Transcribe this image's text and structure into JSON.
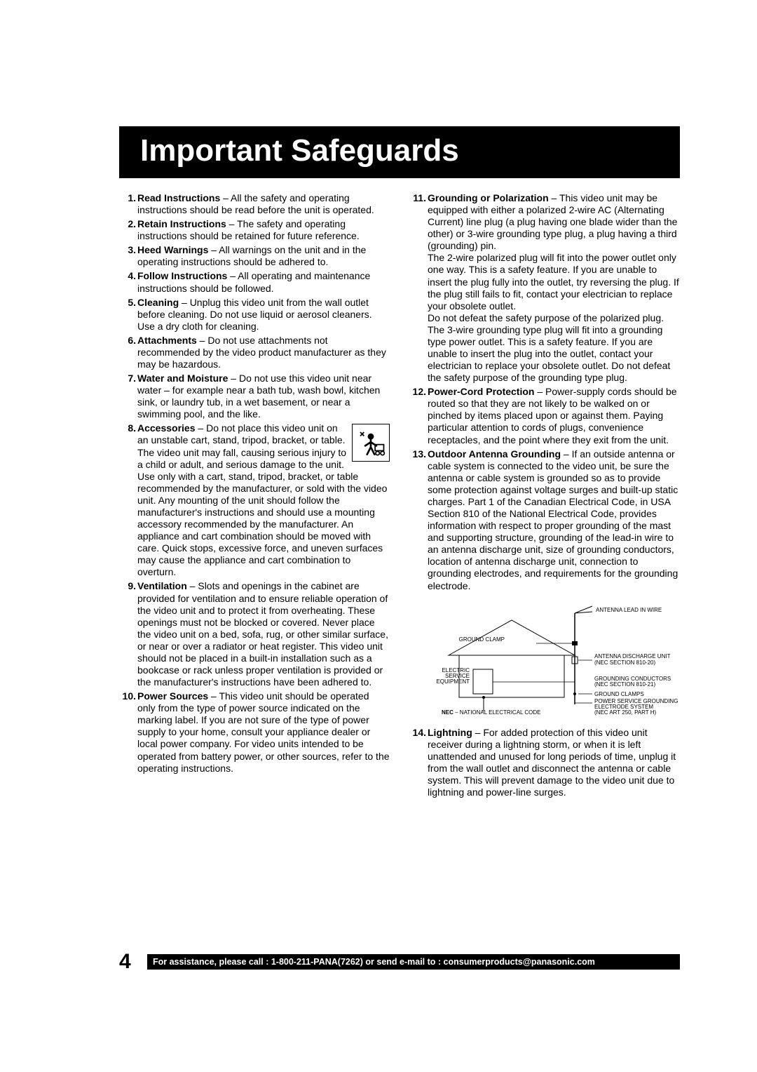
{
  "page_title": "Important Safeguards",
  "page_number": "4",
  "footer_text": "For assistance, please call : 1-800-211-PANA(7262) or send e-mail to : consumerproducts@panasonic.com",
  "colors": {
    "bar_bg": "#000000",
    "bar_fg": "#ffffff",
    "page_bg": "#ffffff",
    "text": "#000000"
  },
  "diagram_labels": {
    "antenna_lead_in": "ANTENNA LEAD IN WIRE",
    "ground_clamp_top": "GROUND CLAMP",
    "antenna_discharge": "ANTENNA DISCHARGE UNIT (NEC SECTION 810-20)",
    "electric_service": "ELECTRIC SERVICE EQUIPMENT",
    "grounding_conductors": "GROUNDING CONDUCTORS (NEC SECTION 810-21)",
    "ground_clamps_bottom": "GROUND CLAMPS",
    "power_service": "POWER SERVICE GROUNDING ELECTRODE SYSTEM (NEC ART 250, PART H)",
    "nec_caption": "NEC – NATIONAL ELECTRICAL CODE"
  },
  "left_items": [
    {
      "n": "1.",
      "title": "Read Instructions",
      "body": " – All the safety and operating instructions should be read before the unit is operated."
    },
    {
      "n": "2.",
      "title": "Retain Instructions",
      "body": " – The safety and operating instructions should be retained for future reference."
    },
    {
      "n": "3.",
      "title": "Heed Warnings",
      "body": " – All warnings on the unit and in the operating instructions should be adhered to."
    },
    {
      "n": "4.",
      "title": "Follow Instructions",
      "body": " – All operating and maintenance instructions should be followed."
    },
    {
      "n": "5.",
      "title": "Cleaning",
      "body": " – Unplug this video unit from the wall outlet before cleaning. Do not use liquid or aerosol cleaners. Use a dry cloth for cleaning."
    },
    {
      "n": "6.",
      "title": "Attachments",
      "body": " – Do not use attachments not recommended by the video product manufacturer as they may be hazardous."
    },
    {
      "n": "7.",
      "title": "Water and Moisture",
      "body": " – Do not use this video unit near water – for example near a bath tub, wash bowl, kitchen sink, or laundry tub, in a wet basement, or near a swimming pool, and the like."
    },
    {
      "n": "8.",
      "title": "Accessories",
      "body": " – Do not place this video unit on an unstable cart, stand, tripod, bracket, or table. The video unit may fall, causing serious injury to a child or adult, and serious damage to the unit. Use only with a cart, stand, tripod, bracket, or table recommended by the manufacturer, or sold with the video unit. Any mounting of the unit should follow the manufacturer's instructions and should use a mounting accessory recommended by the manufacturer. An appliance and cart combination should be moved with care. Quick stops, excessive force, and uneven surfaces may cause the appliance and cart combination to overturn.",
      "has_icon": true
    },
    {
      "n": "9.",
      "title": "Ventilation",
      "body": " – Slots and openings in the cabinet are provided for ventilation and to ensure reliable operation of the video unit and to protect it from overheating. These openings must not be blocked or covered. Never place the video unit on a bed, sofa, rug, or other similar surface, or near or over a radiator or heat register. This video unit should not be placed in a built-in installation such as a bookcase or rack unless proper ventilation is provided or the manufacturer's instructions have been adhered to."
    },
    {
      "n": "10.",
      "title": "Power Sources",
      "body": " – This video unit should be operated only from the type of power source indicated on the marking label. If you are not sure of the type of power supply to your home, consult your appliance dealer or local power company. For video units intended to be operated from battery power, or other sources, refer to the operating instructions."
    }
  ],
  "right_items": [
    {
      "n": "11.",
      "title": "Grounding or Polarization",
      "body": " – This video unit may be equipped with either a polarized 2-wire AC (Alternating Current) line plug (a plug having one blade wider than the other) or 3-wire grounding type plug, a plug having a third (grounding) pin.",
      "extra": [
        "The 2-wire polarized plug will fit into the power outlet only one way. This is a safety feature. If you are unable to insert the plug fully into the outlet, try reversing the plug. If the plug still fails to fit, contact your electrician to replace your obsolete outlet.",
        "Do not defeat the safety purpose of the polarized plug.",
        "The 3-wire grounding type plug will fit into a grounding type power outlet. This is a safety feature. If you are unable to insert the plug into the outlet, contact your electrician to replace your obsolete outlet. Do not defeat the safety purpose of the grounding type plug."
      ]
    },
    {
      "n": "12.",
      "title": "Power-Cord Protection",
      "body": " – Power-supply cords should be routed so that they are not likely to be walked on or pinched by items placed upon or against them. Paying particular attention to cords of plugs, convenience receptacles, and the point where they exit from the unit."
    },
    {
      "n": "13.",
      "title": "Outdoor Antenna Grounding",
      "body": " – If an outside antenna or cable system is connected to the video unit, be sure the antenna or cable system is grounded so as to provide some protection against voltage surges and built-up static charges. Part 1 of the Canadian Electrical Code, in USA Section 810 of the National Electrical Code, provides information with respect to proper grounding of the mast and supporting structure, grounding of the lead-in wire to an antenna discharge unit, size of grounding conductors, location of antenna discharge unit, connection to grounding electrodes, and requirements for the grounding electrode.",
      "has_diagram": true
    },
    {
      "n": "14.",
      "title": "Lightning",
      "body": " – For added protection of this video unit receiver during a lightning storm, or when it is left unattended and unused for long periods of time, unplug it from the wall outlet and disconnect the antenna or cable system. This will prevent damage to the video unit due to lightning and power-line surges."
    }
  ]
}
